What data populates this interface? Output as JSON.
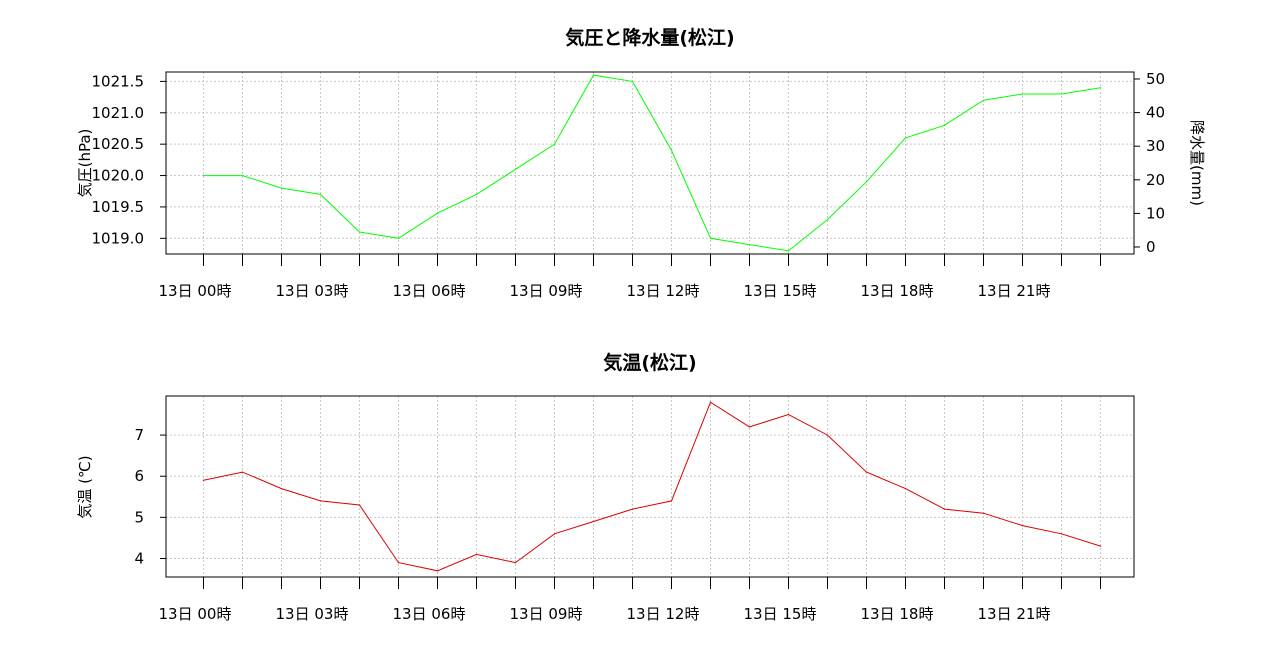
{
  "chart_data": [
    {
      "type": "line",
      "title": "気圧と降水量(松江)",
      "ylabel": "気圧(hPa)",
      "y2label": "降水量(mm)",
      "ylim": [
        1018.75,
        1021.65
      ],
      "y_ticks": [
        "1019.0",
        "1019.5",
        "1020.0",
        "1020.5",
        "1021.0",
        "1021.5"
      ],
      "y2_ticks": [
        "0",
        "10",
        "20",
        "30",
        "40",
        "50"
      ],
      "x_tick_labels": [
        "13日 00時",
        "13日 03時",
        "13日 06時",
        "13日 09時",
        "13日 12時",
        "13日 15時",
        "13日 18時",
        "13日 21時"
      ],
      "grid": true,
      "series": [
        {
          "color": "#00ff00",
          "values": [
            1020.0,
            1020.0,
            1019.8,
            1019.7,
            1019.1,
            1019.0,
            1019.4,
            1019.7,
            1020.1,
            1020.5,
            1021.6,
            1021.5,
            1020.4,
            1019.0,
            1018.9,
            1018.8,
            1019.3,
            1019.9,
            1020.6,
            1020.8,
            1021.2,
            1021.3,
            1021.3,
            1021.4
          ]
        }
      ]
    },
    {
      "type": "line",
      "title": "気温(松江)",
      "ylabel": "気温 (℃)",
      "ylim": [
        3.55,
        7.95
      ],
      "y_ticks": [
        "4",
        "5",
        "6",
        "7"
      ],
      "x_tick_labels": [
        "13日 00時",
        "13日 03時",
        "13日 06時",
        "13日 09時",
        "13日 12時",
        "13日 15時",
        "13日 18時",
        "13日 21時"
      ],
      "grid": true,
      "series": [
        {
          "color": "#dd0000",
          "values": [
            5.9,
            6.1,
            5.7,
            5.4,
            5.3,
            3.9,
            3.7,
            4.1,
            3.9,
            4.6,
            4.9,
            5.2,
            5.4,
            7.8,
            7.2,
            7.5,
            7.0,
            6.1,
            5.7,
            5.2,
            5.1,
            4.8,
            4.6,
            4.3
          ]
        }
      ]
    }
  ]
}
